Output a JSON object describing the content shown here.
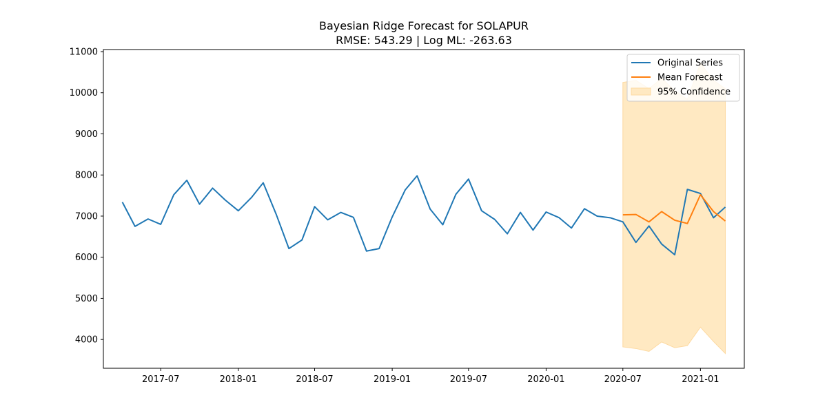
{
  "chart_data": {
    "type": "line",
    "title": "Bayesian Ridge Forecast for SOLAPUR",
    "subtitle": "RMSE: 543.29 | Log ML: -263.63",
    "xlabel": "",
    "ylabel": "",
    "xlim": [
      "2017-02-15",
      "2021-04-15"
    ],
    "ylim": [
      3300,
      11050
    ],
    "yticks": [
      4000,
      5000,
      6000,
      7000,
      8000,
      9000,
      10000,
      11000
    ],
    "xticks": [
      "2017-07",
      "2018-01",
      "2018-07",
      "2019-01",
      "2019-07",
      "2020-01",
      "2020-07",
      "2021-01"
    ],
    "grid": false,
    "legend_position": "top-right",
    "series": [
      {
        "name": "Original Series",
        "color": "#1f77b4",
        "x": [
          "2017-04-01",
          "2017-05-01",
          "2017-06-01",
          "2017-07-01",
          "2017-08-01",
          "2017-09-01",
          "2017-10-01",
          "2017-11-01",
          "2017-12-01",
          "2018-01-01",
          "2018-02-01",
          "2018-03-01",
          "2018-04-01",
          "2018-05-01",
          "2018-06-01",
          "2018-07-01",
          "2018-08-01",
          "2018-09-01",
          "2018-10-01",
          "2018-11-01",
          "2018-12-01",
          "2019-01-01",
          "2019-02-01",
          "2019-03-01",
          "2019-04-01",
          "2019-05-01",
          "2019-06-01",
          "2019-07-01",
          "2019-08-01",
          "2019-09-01",
          "2019-10-01",
          "2019-11-01",
          "2019-12-01",
          "2020-01-01",
          "2020-02-01",
          "2020-03-01",
          "2020-04-01",
          "2020-05-01",
          "2020-06-01",
          "2020-07-01",
          "2020-08-01",
          "2020-09-01",
          "2020-10-01",
          "2020-11-01",
          "2020-12-01",
          "2021-01-01",
          "2021-02-01",
          "2021-03-01"
        ],
        "values": [
          7340,
          6750,
          6930,
          6800,
          7520,
          7870,
          7290,
          7680,
          7390,
          7130,
          7450,
          7810,
          7040,
          6210,
          6420,
          7230,
          6910,
          7090,
          6970,
          6150,
          6210,
          6980,
          7640,
          7980,
          7170,
          6790,
          7530,
          7900,
          7130,
          6920,
          6570,
          7090,
          6660,
          7100,
          6960,
          6710,
          7180,
          7000,
          6960,
          6860,
          6360,
          6760,
          6320,
          6060,
          7650,
          7550,
          6960,
          7220
        ]
      },
      {
        "name": "Mean Forecast",
        "color": "#ff7f0e",
        "x": [
          "2020-07-01",
          "2020-08-01",
          "2020-09-01",
          "2020-10-01",
          "2020-11-01",
          "2020-12-01",
          "2021-01-01",
          "2021-02-01",
          "2021-03-01"
        ],
        "values": [
          7030,
          7040,
          6860,
          7110,
          6900,
          6820,
          7520,
          7110,
          6880
        ]
      }
    ],
    "confidence_band": {
      "name": "95% Confidence",
      "color": "#ffe9c2",
      "edge_color": "#fdd9a0",
      "x": [
        "2020-07-01",
        "2020-08-01",
        "2020-09-01",
        "2020-10-01",
        "2020-11-01",
        "2020-12-01",
        "2021-01-01",
        "2021-02-01",
        "2021-03-01"
      ],
      "lower": [
        3820,
        3780,
        3710,
        3940,
        3800,
        3850,
        4300,
        3950,
        3660
      ],
      "upper": [
        10250,
        10300,
        10100,
        10350,
        10050,
        9840,
        10720,
        10300,
        10100
      ]
    }
  }
}
